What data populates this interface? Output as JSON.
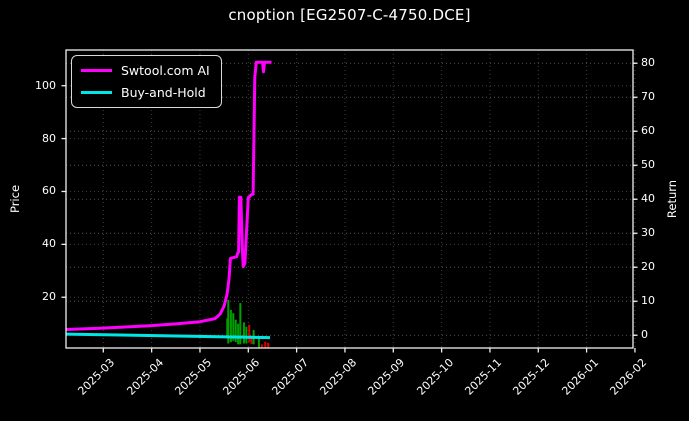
{
  "colors": {
    "background": "#000000",
    "text": "#ffffff",
    "spine": "#f0f0f0",
    "grid_minor": "#3f3f3f",
    "grid_major": "#585858",
    "ai_line": "#ff00ff",
    "bh_line": "#00e5e5",
    "bar_up": "#00a000",
    "bar_down": "#d40000"
  },
  "chart_data": {
    "type": "line",
    "title": "cnoption [EG2507-C-4750.DCE]",
    "legend_position": "upper-left",
    "grid": true,
    "left_axis": {
      "label": "Price",
      "ticks": [
        20,
        40,
        60,
        80,
        100
      ],
      "range": [
        0.8,
        113.5
      ]
    },
    "right_axis": {
      "label": "Return",
      "ticks": [
        0,
        10,
        20,
        30,
        40,
        50,
        60,
        70,
        80
      ],
      "range": [
        -3.75,
        83.9
      ]
    },
    "x_axis": {
      "tick_labels": [
        "2025-03",
        "2025-04",
        "2025-05",
        "2025-06",
        "2025-07",
        "2025-08",
        "2025-09",
        "2025-10",
        "2025-11",
        "2025-12",
        "2026-01",
        "2026-02"
      ],
      "range_months": [
        -0.772,
        10.96
      ]
    },
    "series": [
      {
        "name": "Swtool.com AI",
        "axis": "right",
        "color": "#ff00ff",
        "width": 3,
        "points": [
          [
            -0.772,
            1.7
          ],
          [
            0,
            2.1
          ],
          [
            0.5,
            2.45
          ],
          [
            1,
            2.85
          ],
          [
            1.5,
            3.35
          ],
          [
            2,
            4.0
          ],
          [
            2.31,
            4.9
          ],
          [
            2.42,
            6.3
          ],
          [
            2.5,
            8.6
          ],
          [
            2.56,
            12
          ],
          [
            2.6,
            16.5
          ],
          [
            2.63,
            22.6
          ],
          [
            2.76,
            23.1
          ],
          [
            2.785,
            24.3
          ],
          [
            2.8,
            24.5
          ],
          [
            2.815,
            40.6
          ],
          [
            2.845,
            40.6
          ],
          [
            2.875,
            26
          ],
          [
            2.895,
            20.2
          ],
          [
            2.93,
            21.2
          ],
          [
            3.0,
            40.5
          ],
          [
            3.07,
            41.4
          ],
          [
            3.1,
            41.5
          ],
          [
            3.135,
            76
          ],
          [
            3.165,
            80.3
          ],
          [
            3.295,
            80.3
          ],
          [
            3.315,
            77.5
          ],
          [
            3.335,
            80.3
          ],
          [
            3.48,
            80.3
          ]
        ]
      },
      {
        "name": "Buy-and-Hold",
        "axis": "right",
        "color": "#00e5e5",
        "width": 3,
        "points": [
          [
            -0.772,
            0.35
          ],
          [
            3.45,
            -0.7
          ]
        ]
      }
    ],
    "price_bars": [
      [
        2.565,
        4.5,
        12.0,
        "up"
      ],
      [
        2.586,
        2.5,
        19.0,
        "up"
      ],
      [
        2.64,
        3.0,
        15.2,
        "up"
      ],
      [
        2.69,
        3.5,
        14.0,
        "up"
      ],
      [
        2.74,
        3.0,
        11.5,
        "up"
      ],
      [
        2.79,
        2.2,
        10.0,
        "up"
      ],
      [
        2.835,
        2.2,
        17.8,
        "up"
      ],
      [
        2.91,
        2.5,
        10.5,
        "up"
      ],
      [
        2.96,
        2.5,
        8.8,
        "up"
      ],
      [
        3.02,
        3.0,
        9.5,
        "down"
      ],
      [
        3.065,
        2.3,
        5.5,
        "down"
      ],
      [
        3.11,
        2.2,
        7.6,
        "up"
      ],
      [
        3.22,
        0.9,
        4.2,
        "up"
      ],
      [
        3.28,
        0.9,
        2.2,
        "down"
      ],
      [
        3.35,
        0.9,
        3.2,
        "down"
      ],
      [
        3.41,
        0.9,
        2.8,
        "down"
      ]
    ]
  }
}
